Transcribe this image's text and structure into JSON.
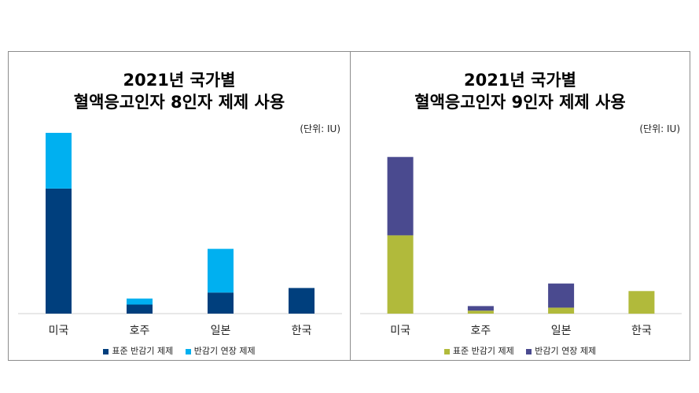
{
  "chart_data": [
    {
      "type": "bar",
      "stacked": true,
      "title_line1": "2021년 국가별",
      "title_line2": "혈액응고인자 8인자 제제 사용",
      "unit": "(단위: IU)",
      "categories": [
        "미국",
        "호주",
        "일본",
        "한국"
      ],
      "ylim": [
        0,
        120
      ],
      "grid": false,
      "legend_position": "bottom",
      "series": [
        {
          "name": "표준 반감기 제제",
          "color": "#003F7D",
          "values": [
            83,
            6,
            14,
            17
          ]
        },
        {
          "name": "반감기 연장 제제",
          "color": "#00B0F0",
          "values": [
            37,
            4,
            29,
            0
          ]
        }
      ]
    },
    {
      "type": "bar",
      "stacked": true,
      "title_line1": "2021년 국가별",
      "title_line2": "혈액응고인자 9인자 제제 사용",
      "unit": "(단위: IU)",
      "categories": [
        "미국",
        "호주",
        "일본",
        "한국"
      ],
      "ylim": [
        0,
        120
      ],
      "grid": false,
      "legend_position": "bottom",
      "series": [
        {
          "name": "표준 반감기 제제",
          "color": "#B1BA3B",
          "values": [
            52,
            2,
            4,
            15
          ]
        },
        {
          "name": "반감기 연장 제제",
          "color": "#4A4A8F",
          "values": [
            52,
            3,
            16,
            0
          ]
        }
      ]
    }
  ]
}
